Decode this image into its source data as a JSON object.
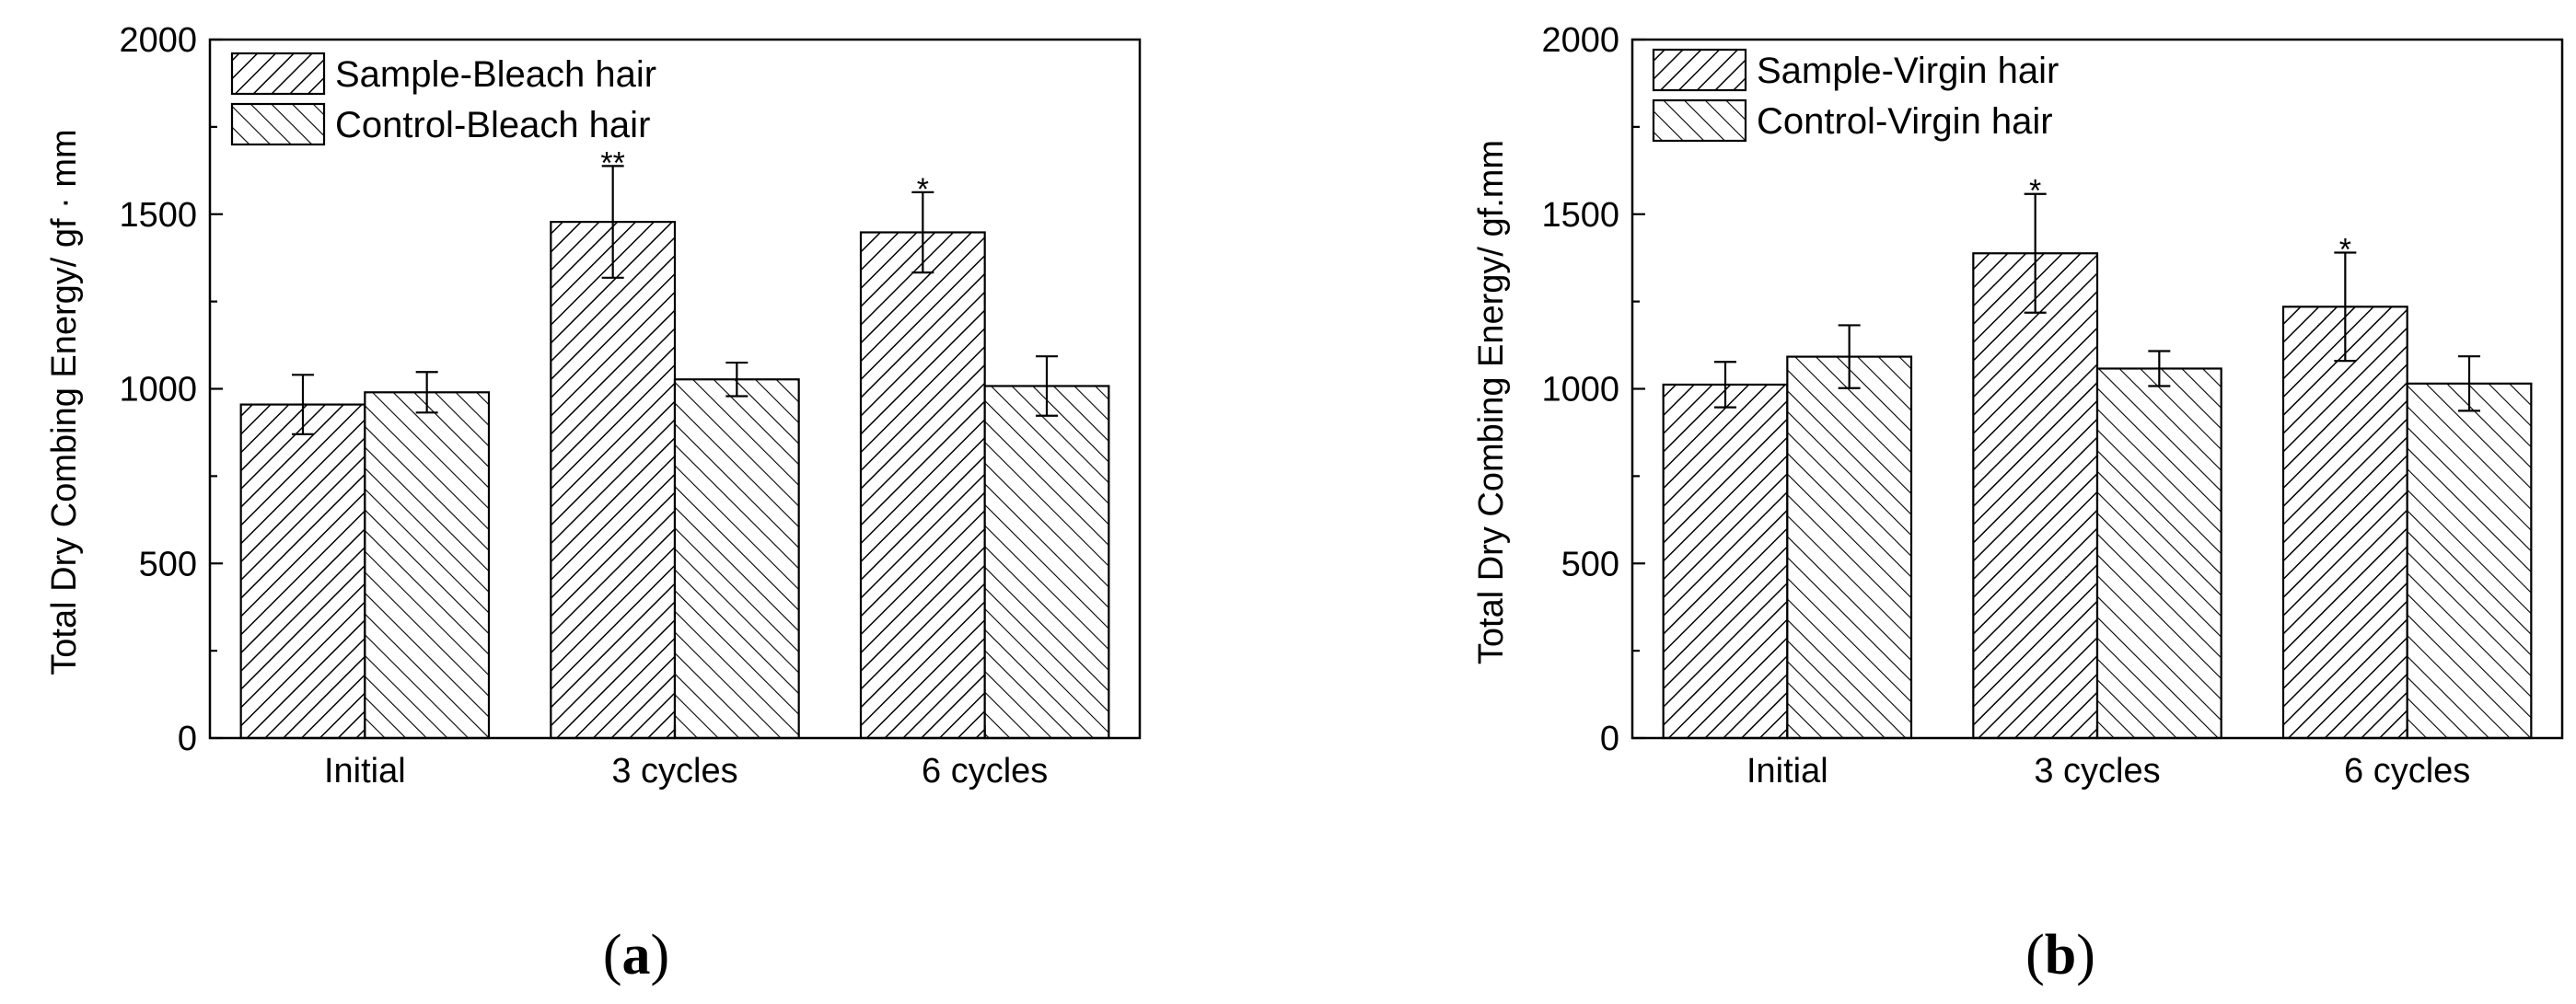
{
  "chart_data": [
    {
      "type": "bar",
      "panel_label": [
        "(",
        "a",
        ")"
      ],
      "ylabel": "Total Dry Combing Energy/ gf · mm",
      "xlabel": "",
      "categories": [
        "Initial",
        "3 cycles",
        "6 cycles"
      ],
      "ylim": [
        0,
        2000
      ],
      "yticks": [
        "0",
        "500",
        "1000",
        "1500",
        "2000"
      ],
      "legend_position": "top-left",
      "series": [
        {
          "name": "Sample-Bleach hair",
          "values": [
            955,
            1478,
            1448
          ],
          "errors": [
            85,
            160,
            115
          ],
          "hatch": "forward"
        },
        {
          "name": "Control-Bleach hair",
          "values": [
            990,
            1027,
            1008
          ],
          "errors": [
            58,
            48,
            85
          ],
          "hatch": "backward"
        }
      ],
      "annotations": [
        {
          "series": 0,
          "category": 1,
          "text": "**"
        },
        {
          "series": 0,
          "category": 2,
          "text": "*"
        }
      ]
    },
    {
      "type": "bar",
      "panel_label": [
        "(",
        "b",
        ")"
      ],
      "ylabel": "Total Dry Combing Energy/ gf.mm",
      "xlabel": "",
      "categories": [
        "Initial",
        "3 cycles",
        "6 cycles"
      ],
      "ylim": [
        0,
        2000
      ],
      "yticks": [
        "0",
        "500",
        "1000",
        "1500",
        "2000"
      ],
      "legend_position": "top-left",
      "series": [
        {
          "name": "Sample-Virgin hair",
          "values": [
            1012,
            1388,
            1235
          ],
          "errors": [
            65,
            170,
            155
          ],
          "hatch": "forward"
        },
        {
          "name": "Control-Virgin hair",
          "values": [
            1092,
            1058,
            1015
          ],
          "errors": [
            90,
            50,
            78
          ],
          "hatch": "backward"
        }
      ],
      "annotations": [
        {
          "series": 0,
          "category": 1,
          "text": "*"
        },
        {
          "series": 0,
          "category": 2,
          "text": "*"
        }
      ]
    }
  ]
}
